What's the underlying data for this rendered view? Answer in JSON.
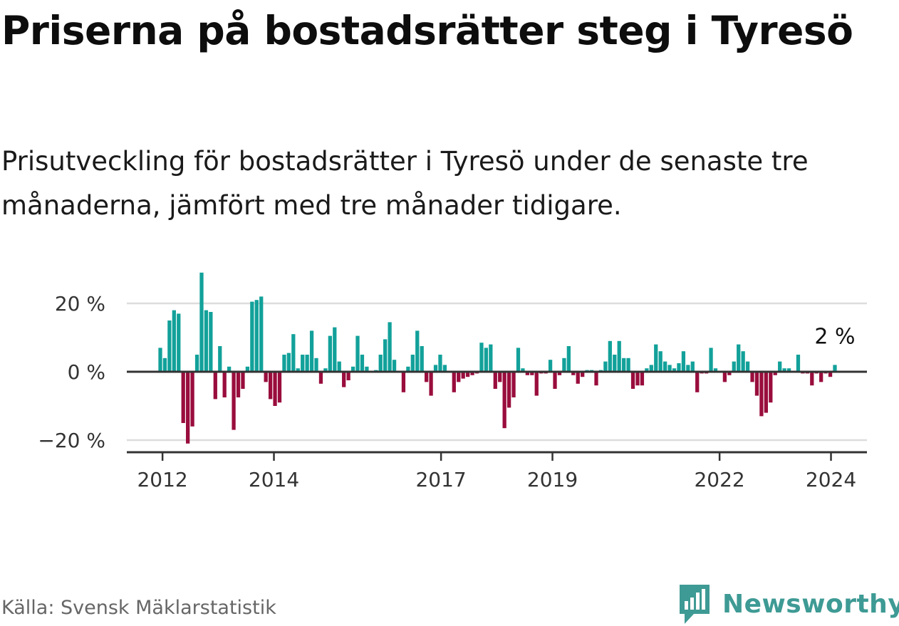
{
  "header": {
    "title": "Priserna på bostadsrätter steg i Tyresö",
    "subtitle": "Prisutveckling för bostadsrätter i Tyresö under de senaste tre månaderna, jämfört med tre månader tidigare."
  },
  "footer": {
    "source": "Källa: Svensk Mäklarstatistik",
    "brand": "Newsworthy"
  },
  "colors": {
    "positive": "#12a19a",
    "negative": "#990d3d",
    "brand": "#3e9a94",
    "grid": "#dddddd",
    "axis": "#333333"
  },
  "chart_data": {
    "type": "bar",
    "title": "Priserna på bostadsrätter steg i Tyresö",
    "ylabel": "",
    "xlabel": "",
    "ylim": [
      -23,
      29
    ],
    "yticks": [
      20,
      0,
      -20
    ],
    "ytick_labels": [
      "20 %",
      "0 %",
      "−20 %"
    ],
    "x_start": 2011.96,
    "x_end": 2024.07,
    "xticks": [
      2012,
      2014,
      2017,
      2019,
      2022,
      2024
    ],
    "xtick_labels": [
      "2012",
      "2014",
      "2017",
      "2019",
      "2022",
      "2024"
    ],
    "annotation": {
      "label": "2 %",
      "value": 2
    },
    "values": [
      7,
      4,
      15,
      18,
      17,
      -15,
      -21,
      -16,
      5,
      29,
      18,
      17.5,
      -8,
      7.5,
      -7.5,
      1.5,
      -17,
      -7.5,
      -5,
      1.5,
      20.5,
      21,
      22,
      -3,
      -8,
      -10,
      -9,
      5,
      5.5,
      11,
      1,
      5,
      5,
      12,
      4,
      -3.5,
      1,
      10.5,
      13,
      3,
      -4.5,
      -2.5,
      1.5,
      10.5,
      5,
      1.5,
      0,
      0.5,
      5,
      9.5,
      14.5,
      3.5,
      0,
      -6,
      1.5,
      5,
      12,
      7.5,
      -3,
      -7,
      2,
      5,
      2,
      0,
      -6,
      -3,
      -2,
      -1.5,
      -1,
      -0.5,
      8.5,
      7,
      8,
      -5,
      -3,
      -16.5,
      -10.5,
      -7.5,
      7,
      1,
      -1,
      -1,
      -7,
      -0.5,
      -0.5,
      3.5,
      -5,
      -1,
      4,
      7.5,
      -1,
      -3.5,
      -1.5,
      0.5,
      0.5,
      -4,
      0.5,
      3,
      9,
      5,
      9,
      4,
      4,
      -5,
      -4,
      -4,
      1,
      2,
      8,
      6,
      3,
      2,
      1,
      2.5,
      6,
      2,
      3,
      -6,
      -0.5,
      -0.5,
      7,
      1,
      0,
      -3,
      -1,
      3,
      8,
      6,
      3,
      -3,
      -7,
      -13,
      -12,
      -9,
      -1,
      3,
      1,
      1,
      0,
      5,
      -0.5,
      -0.5,
      -4,
      -0.5,
      -3,
      -0.5,
      -1.5,
      2
    ]
  }
}
